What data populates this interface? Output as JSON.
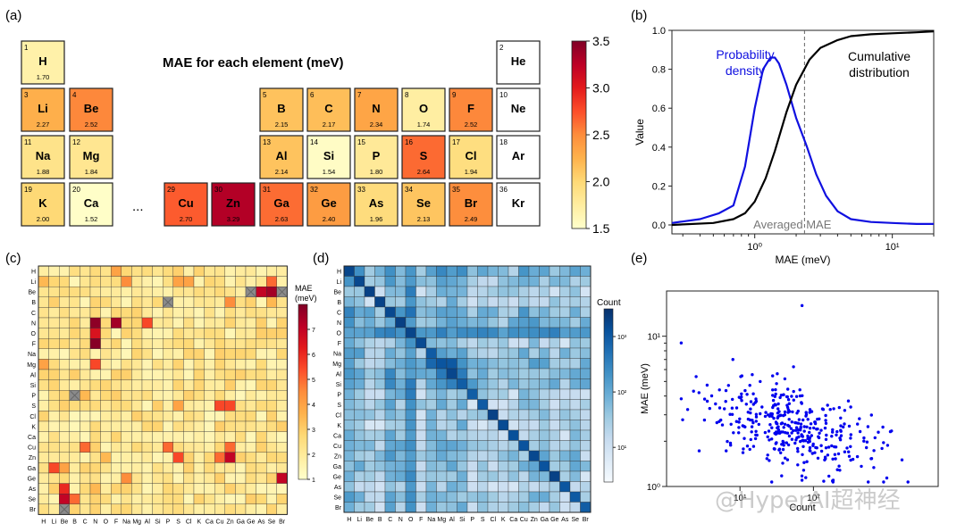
{
  "panel_labels": [
    "(a)",
    "(b)",
    "(c)",
    "(d)",
    "(e)"
  ],
  "watermark": "@HyperAI超神经",
  "colors": {
    "mae_scale": [
      "#ffffcc",
      "#ffeda0",
      "#fed976",
      "#feb24c",
      "#fd8d3c",
      "#fc4e2a",
      "#e31a1c",
      "#bd0026",
      "#800026"
    ],
    "count_scale": [
      "#f7fbff",
      "#deebf7",
      "#c6dbef",
      "#9ecae1",
      "#6baed6",
      "#4292c6",
      "#2171b5",
      "#08519c",
      "#08306b"
    ],
    "blue_line": "#1010e0",
    "black_line": "#000000",
    "point": "#0000ee"
  },
  "chart_data": [
    {
      "type": "heatmap",
      "panel": "(a)",
      "title": "MAE for each element (meV)",
      "colorbar": {
        "min": 1.5,
        "max": 3.5,
        "ticks": [
          "1.5",
          "2.0",
          "2.5",
          "3.0",
          "3.5"
        ]
      },
      "ellipsis": "...",
      "elements": [
        {
          "z": "1",
          "sym": "H",
          "val": "1.70"
        },
        {
          "z": "2",
          "sym": "He",
          "val": ""
        },
        {
          "z": "3",
          "sym": "Li",
          "val": "2.27"
        },
        {
          "z": "4",
          "sym": "Be",
          "val": "2.52"
        },
        {
          "z": "5",
          "sym": "B",
          "val": "2.15"
        },
        {
          "z": "6",
          "sym": "C",
          "val": "2.17"
        },
        {
          "z": "7",
          "sym": "N",
          "val": "2.34"
        },
        {
          "z": "8",
          "sym": "O",
          "val": "1.74"
        },
        {
          "z": "9",
          "sym": "F",
          "val": "2.52"
        },
        {
          "z": "10",
          "sym": "Ne",
          "val": ""
        },
        {
          "z": "11",
          "sym": "Na",
          "val": "1.88"
        },
        {
          "z": "12",
          "sym": "Mg",
          "val": "1.84"
        },
        {
          "z": "13",
          "sym": "Al",
          "val": "2.14"
        },
        {
          "z": "14",
          "sym": "Si",
          "val": "1.54"
        },
        {
          "z": "15",
          "sym": "P",
          "val": "1.80"
        },
        {
          "z": "16",
          "sym": "S",
          "val": "2.64"
        },
        {
          "z": "17",
          "sym": "Cl",
          "val": "1.94"
        },
        {
          "z": "18",
          "sym": "Ar",
          "val": ""
        },
        {
          "z": "19",
          "sym": "K",
          "val": "2.00"
        },
        {
          "z": "20",
          "sym": "Ca",
          "val": "1.52"
        },
        {
          "z": "29",
          "sym": "Cu",
          "val": "2.70"
        },
        {
          "z": "30",
          "sym": "Zn",
          "val": "3.29"
        },
        {
          "z": "31",
          "sym": "Ga",
          "val": "2.63"
        },
        {
          "z": "32",
          "sym": "Ge",
          "val": "2.40"
        },
        {
          "z": "33",
          "sym": "As",
          "val": "1.96"
        },
        {
          "z": "34",
          "sym": "Se",
          "val": "2.13"
        },
        {
          "z": "35",
          "sym": "Br",
          "val": "2.49"
        },
        {
          "z": "36",
          "sym": "Kr",
          "val": ""
        }
      ]
    },
    {
      "type": "line",
      "panel": "(b)",
      "xlabel": "MAE (meV)",
      "ylabel": "Value",
      "xscale": "log",
      "xlim": [
        0.25,
        20
      ],
      "ylim": [
        0,
        1.0
      ],
      "y_ticks": [
        "0.0",
        "0.2",
        "0.4",
        "0.6",
        "0.8",
        "1.0"
      ],
      "x_ticks": [
        "10⁰",
        "10¹"
      ],
      "annotation": "Averaged MAE",
      "averaged_mae": 2.3,
      "series": [
        {
          "name": "Probability density",
          "x": [
            0.25,
            0.4,
            0.55,
            0.7,
            0.85,
            1.0,
            1.15,
            1.3,
            1.4,
            1.5,
            1.7,
            2.0,
            2.4,
            2.8,
            3.3,
            4.0,
            5.0,
            7.0,
            10,
            15,
            20
          ],
          "y": [
            0.01,
            0.03,
            0.06,
            0.1,
            0.3,
            0.6,
            0.8,
            0.86,
            0.86,
            0.83,
            0.72,
            0.55,
            0.4,
            0.26,
            0.15,
            0.07,
            0.03,
            0.015,
            0.01,
            0.005,
            0.005
          ]
        },
        {
          "name": "Cumulative distribution",
          "x": [
            0.25,
            0.5,
            0.7,
            0.85,
            1.0,
            1.2,
            1.4,
            1.7,
            2.0,
            2.5,
            3.0,
            4.0,
            5.0,
            7.0,
            10,
            15,
            20
          ],
          "y": [
            0.0,
            0.01,
            0.03,
            0.06,
            0.12,
            0.24,
            0.38,
            0.58,
            0.72,
            0.85,
            0.91,
            0.95,
            0.97,
            0.98,
            0.985,
            0.99,
            0.995
          ]
        }
      ]
    },
    {
      "type": "heatmap",
      "panel": "(c)",
      "colorbar_label": "MAE\n(meV)",
      "colorbar": {
        "min": 1,
        "max": 8,
        "ticks": [
          "1",
          "2",
          "3",
          "4",
          "5",
          "6",
          "7"
        ]
      },
      "labels": [
        "H",
        "Li",
        "Be",
        "B",
        "C",
        "N",
        "O",
        "F",
        "Na",
        "Mg",
        "Al",
        "Si",
        "P",
        "S",
        "Cl",
        "K",
        "Ca",
        "Cu",
        "Zn",
        "Ga",
        "Ge",
        "As",
        "Se",
        "Br"
      ],
      "base": 2.2,
      "missing": [
        [
          2,
          20
        ],
        [
          2,
          23
        ],
        [
          3,
          12
        ],
        [
          12,
          3
        ],
        [
          23,
          2
        ]
      ],
      "highlights": [
        [
          5,
          5,
          7.8
        ],
        [
          5,
          7,
          7.5
        ],
        [
          6,
          5,
          6.5
        ],
        [
          7,
          5,
          7.9
        ],
        [
          5,
          10,
          5.5
        ],
        [
          9,
          5,
          5.5
        ],
        [
          2,
          21,
          7.0
        ],
        [
          2,
          22,
          7.5
        ],
        [
          1,
          22,
          5.0
        ],
        [
          21,
          2,
          6.0
        ],
        [
          22,
          2,
          7.0
        ],
        [
          22,
          3,
          5.0
        ],
        [
          20,
          23,
          7.0
        ],
        [
          18,
          18,
          7.0
        ],
        [
          18,
          17,
          5.0
        ],
        [
          17,
          18,
          5.0
        ],
        [
          13,
          17,
          5.5
        ],
        [
          13,
          18,
          5.5
        ],
        [
          18,
          13,
          5.5
        ],
        [
          17,
          4,
          5.0
        ],
        [
          19,
          1,
          5.5
        ],
        [
          19,
          2,
          4.0
        ],
        [
          17,
          12,
          5.0
        ],
        [
          13,
          13,
          4.0
        ],
        [
          1,
          0,
          3.5
        ],
        [
          0,
          7,
          4.0
        ],
        [
          1,
          8,
          4.5
        ],
        [
          3,
          18,
          4.5
        ],
        [
          1,
          13,
          4.0
        ],
        [
          1,
          14,
          4.0
        ],
        [
          9,
          0,
          4.0
        ],
        [
          20,
          8,
          4.5
        ],
        [
          3,
          22,
          3.5
        ],
        [
          21,
          5,
          3.5
        ],
        [
          18,
          6,
          3.5
        ],
        [
          12,
          4,
          3.5
        ]
      ]
    },
    {
      "type": "heatmap",
      "panel": "(d)",
      "colorbar_label": "Count",
      "colorbar": {
        "scale": "log",
        "ticks": [
          "10¹",
          "10²",
          "10³"
        ]
      },
      "labels": [
        "H",
        "Li",
        "Be",
        "B",
        "C",
        "N",
        "O",
        "F",
        "Na",
        "Mg",
        "Al",
        "Si",
        "P",
        "S",
        "Cl",
        "K",
        "Ca",
        "Cu",
        "Zn",
        "Ga",
        "Ge",
        "As",
        "Se",
        "Br"
      ]
    },
    {
      "type": "scatter",
      "panel": "(e)",
      "xlabel": "Count",
      "ylabel": "MAE (meV)",
      "xscale": "log",
      "yscale": "log",
      "xlim": [
        1,
        5000
      ],
      "ylim": [
        1,
        20
      ],
      "x_ticks": [
        "10¹",
        "10²"
      ],
      "y_ticks": [
        "10⁰",
        "10¹"
      ],
      "n_points": 380
    }
  ]
}
